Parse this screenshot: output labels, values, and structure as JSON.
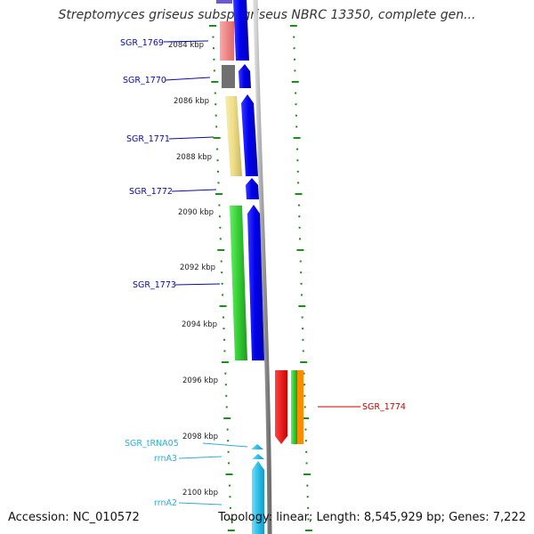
{
  "title": "Streptomyces griseus subsp. griseus NBRC 13350, complete gen...",
  "footer": {
    "accession": "Accession: NC_010572",
    "stats": "Topology: linear; Length: 8,545,929 bp; Genes: 7,222"
  },
  "colors": {
    "background": "#ffffff",
    "ruler_tick": "#1a8f1a",
    "backbone": "#a0a0a0",
    "cds": "#0000ee",
    "trna": "#2ac0e8",
    "gene_label": "#0a0aa8",
    "rna_label": "#2ab0d8",
    "highlight_label": "#cc0000"
  },
  "scale_labels": [
    "2084 kbp",
    "2086 kbp",
    "2088 kbp",
    "2090 kbp",
    "2092 kbp",
    "2094 kbp",
    "2096 kbp",
    "2098 kbp",
    "2100 kbp"
  ],
  "genes": [
    {
      "id": "SGR_1769",
      "label": "SGR_1769",
      "kind": "cds",
      "strand": "-",
      "cog_color": "#f08080"
    },
    {
      "id": "SGR_1770",
      "label": "SGR_1770",
      "kind": "cds",
      "strand": "-",
      "cog_color": "#707070"
    },
    {
      "id": "SGR_1771",
      "label": "SGR_1771",
      "kind": "cds",
      "strand": "-",
      "cog_color": "#eedd88"
    },
    {
      "id": "SGR_1772",
      "label": "SGR_1772",
      "kind": "cds",
      "strand": "-",
      "cog_color": null
    },
    {
      "id": "SGR_1773",
      "label": "SGR_1773",
      "kind": "cds",
      "strand": "-",
      "cog_color": "#33cc33"
    },
    {
      "id": "SGR_1774",
      "label": "SGR_1774",
      "kind": "cds",
      "strand": "+",
      "cog_color": "#ee0000"
    },
    {
      "id": "SGR_tRNA05",
      "label": "SGR_tRNA05",
      "kind": "trna",
      "strand": "-",
      "cog_color": null
    },
    {
      "id": "rrnA3",
      "label": "rrnA3",
      "kind": "rrna",
      "strand": "-",
      "cog_color": null
    },
    {
      "id": "rrnA2",
      "label": "rrnA2",
      "kind": "rrna",
      "strand": "-",
      "cog_color": null
    }
  ]
}
